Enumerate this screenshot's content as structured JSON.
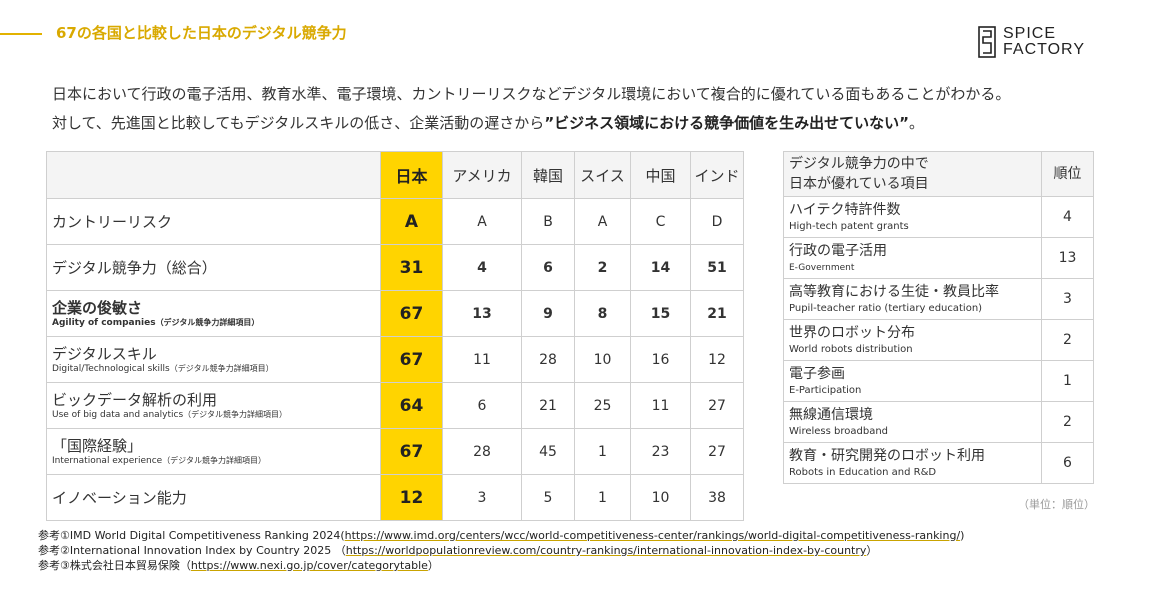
{
  "header": {
    "title": "67の各国と比較した日本のデジタル競争力",
    "logo_line1": "SPICE",
    "logo_line2": "FACTORY"
  },
  "intro": {
    "line1": "日本において行政の電子活用、教育水準、電子環境、カントリーリスクなどデジタル環境において複合的に優れている面もあることがわかる。",
    "line2_prefix": "対して、先進国と比較してもデジタルスキルの低さ、企業活動の遅さから",
    "line2_bold": "”ビジネス領域における競争価値を生み出せていない”",
    "line2_suffix": "。"
  },
  "main_table": {
    "columns": [
      "日本",
      "アメリカ",
      "韓国",
      "スイス",
      "中国",
      "インド"
    ],
    "rows": [
      {
        "label": "カントリーリスク",
        "sub": "",
        "note": "",
        "values": [
          "A",
          "A",
          "B",
          "A",
          "C",
          "D"
        ]
      },
      {
        "label": "デジタル競争力（総合）",
        "sub": "",
        "note": "",
        "values": [
          "31",
          "4",
          "6",
          "2",
          "14",
          "51"
        ]
      },
      {
        "label": "企業の俊敏さ",
        "sub": "Agility of companies",
        "note": "（デジタル競争力詳細項目）",
        "values": [
          "67",
          "13",
          "9",
          "8",
          "15",
          "21"
        ]
      },
      {
        "label": "デジタルスキル",
        "sub": "Digital/Technological skills",
        "note": "（デジタル競争力詳細項目）",
        "values": [
          "67",
          "11",
          "28",
          "10",
          "16",
          "12"
        ]
      },
      {
        "label": "ビックデータ解析の利用",
        "sub": "Use of big data and analytics",
        "note": "（デジタル競争力詳細項目）",
        "values": [
          "64",
          "6",
          "21",
          "25",
          "11",
          "27"
        ]
      },
      {
        "label": "「国際経験」",
        "sub": "International experience",
        "note": "（デジタル競争力詳細項目）",
        "values": [
          "67",
          "28",
          "45",
          "1",
          "23",
          "27"
        ]
      },
      {
        "label": "イノベーション能力",
        "sub": "",
        "note": "",
        "values": [
          "12",
          "3",
          "5",
          "1",
          "10",
          "38"
        ]
      }
    ]
  },
  "side_table": {
    "header_line1": "デジタル競争力の中で",
    "header_line2": "日本が優れている項目",
    "rank_header": "順位",
    "rows": [
      {
        "label": "ハイテク特許件数",
        "sub": "High-tech patent grants",
        "rank": "4"
      },
      {
        "label": "行政の電子活用",
        "sub": "E-Government",
        "rank": "13"
      },
      {
        "label": "高等教育における生徒・教員比率",
        "sub": "Pupil-teacher ratio (tertiary education)",
        "rank": "3"
      },
      {
        "label": "世界のロボット分布",
        "sub": "World robots distribution",
        "rank": "2"
      },
      {
        "label": "電子参画",
        "sub": "E-Participation",
        "rank": "1"
      },
      {
        "label": "無線通信環境",
        "sub": "Wireless broadband",
        "rank": "2"
      },
      {
        "label": "教育・研究開発のロボット利用",
        "sub": "Robots in Education and R&D",
        "rank": "6"
      }
    ]
  },
  "unit_note": "（単位：順位）",
  "references": [
    {
      "prefix": "参考①IMD World Digital Competitiveness Ranking 2024(",
      "url": "https://www.imd.org/centers/wcc/world-competitiveness-center/rankings/world-digital-competitiveness-ranking/",
      "suffix": ")"
    },
    {
      "prefix": "参考②International Innovation Index by Country 2025 （",
      "url": "https://worldpopulationreview.com/country-rankings/international-innovation-index-by-country",
      "suffix": "）"
    },
    {
      "prefix": "参考③株式会社日本貿易保険（",
      "url": "https://www.nexi.go.jp/cover/categorytable",
      "suffix": "）"
    }
  ]
}
